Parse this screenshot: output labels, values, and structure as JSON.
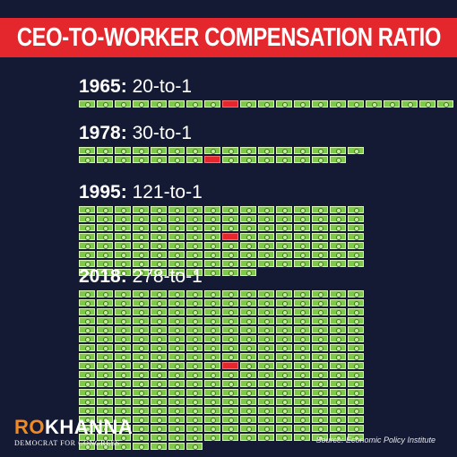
{
  "header": {
    "title": "CEO-TO-WORKER COMPENSATION RATIO"
  },
  "sections": [
    {
      "year": "1965:",
      "ratio_text": "20-to-1",
      "worker_bills": 20
    },
    {
      "year": "1978:",
      "ratio_text": "30-to-1",
      "worker_bills": 30
    },
    {
      "year": "1995:",
      "ratio_text": "121-to-1",
      "worker_bills": 121
    },
    {
      "year": "2018:",
      "ratio_text": "278-to-1",
      "worker_bills": 278
    }
  ],
  "footer": {
    "logo_ro": "RO",
    "logo_khanna": "KHANNA",
    "logo_sub": "DEMOCRAT FOR CONGRESS",
    "source": "Source: Economic Policy Institute"
  },
  "colors": {
    "background": "#141a33",
    "banner": "#e3272c",
    "worker_bill": "#7fc94a",
    "ceo_bill": "#e3272c",
    "logo_accent": "#f08a24"
  },
  "icons": {
    "worker": "dollar-bill-icon",
    "ceo": "red-bill-icon"
  }
}
